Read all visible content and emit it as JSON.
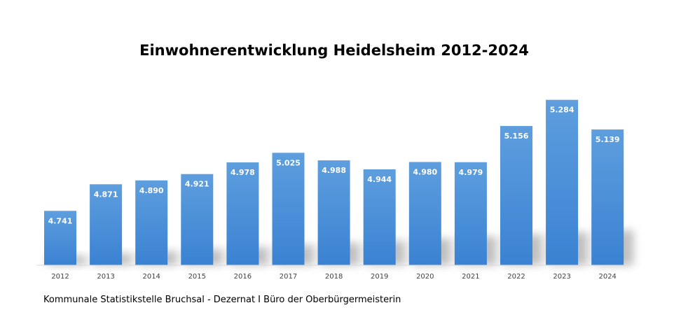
{
  "chart_data": {
    "type": "bar",
    "title": "Einwohnerentwicklung Heidelsheim 2012-2024",
    "categories": [
      "2012",
      "2013",
      "2014",
      "2015",
      "2016",
      "2017",
      "2018",
      "2019",
      "2020",
      "2021",
      "2022",
      "2023",
      "2024"
    ],
    "values": [
      4741,
      4871,
      4890,
      4921,
      4978,
      5025,
      4988,
      4944,
      4980,
      4979,
      5156,
      5284,
      5139
    ],
    "data_labels": [
      "4.741",
      "4.871",
      "4.890",
      "4.921",
      "4.978",
      "5.025",
      "4.988",
      "4.944",
      "4.980",
      "4.979",
      "5.156",
      "5.284",
      "5.139"
    ],
    "xlabel": "",
    "ylabel": "",
    "ylim": [
      4475,
      5300
    ],
    "grid": false,
    "legend": "none",
    "bar_color_top": "#5e9ede",
    "bar_color_bottom": "#3a82d2"
  },
  "footer": {
    "source": "Kommunale Statistikstelle Bruchsal - Dezernat I Büro der Oberbürgermeisterin"
  }
}
